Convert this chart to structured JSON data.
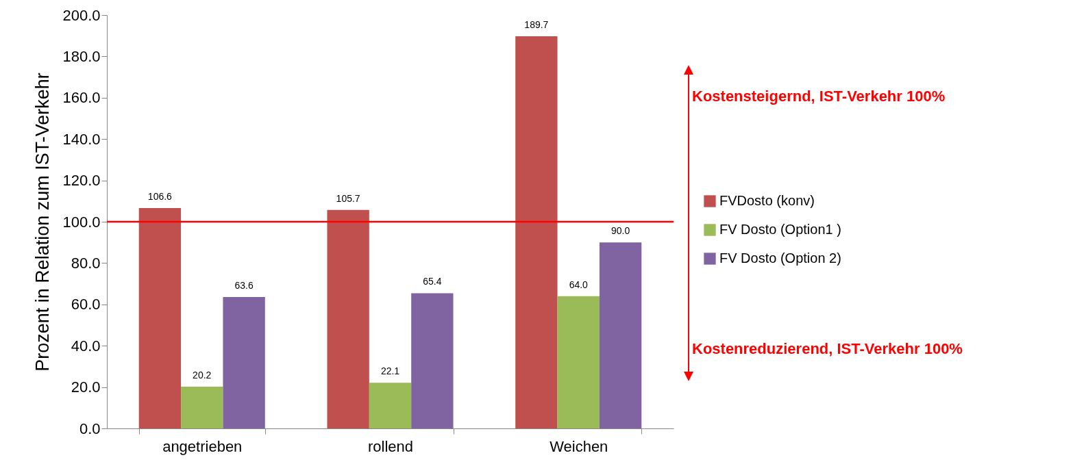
{
  "chart_data": {
    "type": "bar",
    "ylabel": "Prozent in Relation zum IST-Verkehr",
    "categories": [
      "angetrieben",
      "rollend",
      "Weichen"
    ],
    "series": [
      {
        "name": "FVDosto (konv)",
        "color": "#c0504d",
        "values": [
          106.6,
          105.7,
          189.7
        ],
        "value_labels": [
          "106.6",
          "105.7",
          "189.7"
        ]
      },
      {
        "name": "FV Dosto (Option1 )",
        "color": "#9bbb59",
        "values": [
          20.2,
          22.1,
          64.0
        ],
        "value_labels": [
          "20.2",
          "22.1",
          "64.0"
        ]
      },
      {
        "name": "FV Dosto (Option 2)",
        "color": "#8064a2",
        "values": [
          63.6,
          65.4,
          90.0
        ],
        "value_labels": [
          "63.6",
          "65.4",
          "90.0"
        ]
      }
    ],
    "ylim": [
      0,
      200
    ],
    "yticks": [
      {
        "value": 0,
        "label": "0.0"
      },
      {
        "value": 20,
        "label": "20.0"
      },
      {
        "value": 40,
        "label": "40.0"
      },
      {
        "value": 60,
        "label": "60.0"
      },
      {
        "value": 80,
        "label": "80.0"
      },
      {
        "value": 100,
        "label": "100.0"
      },
      {
        "value": 120,
        "label": "120.0"
      },
      {
        "value": 140,
        "label": "140.0"
      },
      {
        "value": 160,
        "label": "160.0"
      },
      {
        "value": 180,
        "label": "180.0"
      },
      {
        "value": 200,
        "label": "200.0"
      }
    ],
    "ref_lines": [
      {
        "axis": "y",
        "value": 100,
        "color": "#ff0000"
      }
    ],
    "annotations": [
      "Kostensteigernd, IST-Verkehr 100%",
      "Kostenreduzierend, IST-Verkehr 100%"
    ],
    "legend": "right",
    "grid": false
  }
}
